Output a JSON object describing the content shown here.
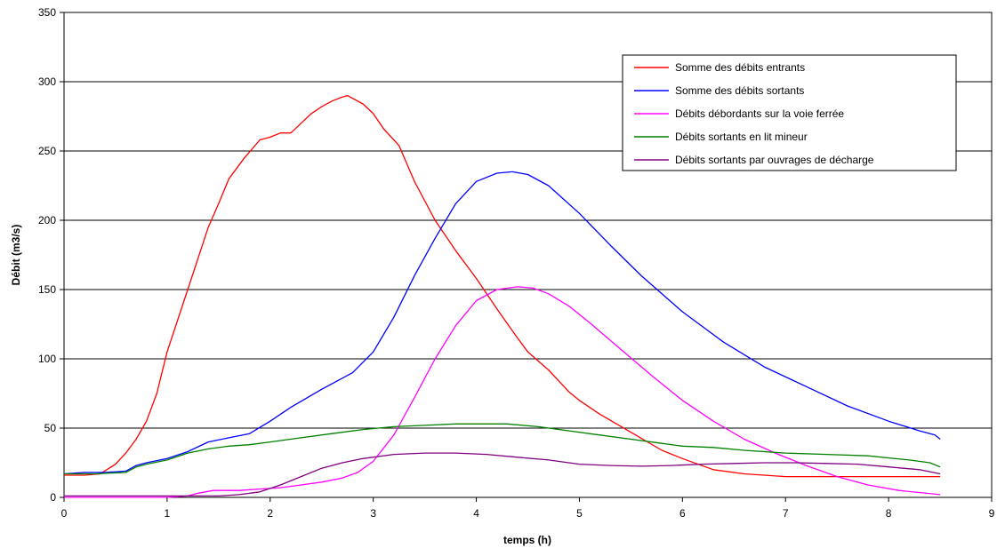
{
  "chart_data": {
    "type": "line",
    "title": "",
    "xlabel": "temps (h)",
    "ylabel": "Débit (m3/s)",
    "xlim": [
      0,
      9
    ],
    "ylim": [
      0,
      350
    ],
    "x_ticks": [
      0,
      1,
      2,
      3,
      4,
      5,
      6,
      7,
      8,
      9
    ],
    "y_ticks": [
      0,
      50,
      100,
      150,
      200,
      250,
      300,
      350
    ],
    "grid": "horizontal",
    "legend_position": "top-right",
    "series": [
      {
        "name": "Somme des débits entrants",
        "color": "#ff0000",
        "points": [
          [
            0,
            16
          ],
          [
            0.2,
            16
          ],
          [
            0.35,
            17
          ],
          [
            0.5,
            24
          ],
          [
            0.6,
            32
          ],
          [
            0.7,
            42
          ],
          [
            0.8,
            55
          ],
          [
            0.9,
            75
          ],
          [
            1.0,
            105
          ],
          [
            1.2,
            150
          ],
          [
            1.4,
            195
          ],
          [
            1.5,
            212
          ],
          [
            1.6,
            230
          ],
          [
            1.75,
            245
          ],
          [
            1.9,
            258
          ],
          [
            2.0,
            260
          ],
          [
            2.1,
            263
          ],
          [
            2.2,
            263
          ],
          [
            2.3,
            270
          ],
          [
            2.4,
            277
          ],
          [
            2.5,
            282
          ],
          [
            2.6,
            286
          ],
          [
            2.7,
            289
          ],
          [
            2.75,
            290
          ],
          [
            2.9,
            284
          ],
          [
            3.0,
            277
          ],
          [
            3.1,
            266
          ],
          [
            3.25,
            254
          ],
          [
            3.4,
            228
          ],
          [
            3.6,
            200
          ],
          [
            3.8,
            178
          ],
          [
            4.0,
            158
          ],
          [
            4.2,
            136
          ],
          [
            4.4,
            115
          ],
          [
            4.5,
            105
          ],
          [
            4.7,
            92
          ],
          [
            4.9,
            76
          ],
          [
            5.0,
            70
          ],
          [
            5.2,
            60
          ],
          [
            5.5,
            47
          ],
          [
            5.8,
            34
          ],
          [
            6.0,
            28
          ],
          [
            6.3,
            20
          ],
          [
            6.6,
            17
          ],
          [
            7.0,
            15
          ],
          [
            7.5,
            15
          ],
          [
            8.0,
            15
          ],
          [
            8.5,
            15
          ]
        ]
      },
      {
        "name": "Somme des débits sortants",
        "color": "#0000ff",
        "points": [
          [
            0,
            17
          ],
          [
            0.2,
            18
          ],
          [
            0.4,
            18
          ],
          [
            0.6,
            19
          ],
          [
            0.7,
            23
          ],
          [
            0.8,
            25
          ],
          [
            1.0,
            28
          ],
          [
            1.2,
            33
          ],
          [
            1.4,
            40
          ],
          [
            1.6,
            43
          ],
          [
            1.8,
            46
          ],
          [
            2.0,
            55
          ],
          [
            2.2,
            65
          ],
          [
            2.5,
            78
          ],
          [
            2.8,
            90
          ],
          [
            3.0,
            105
          ],
          [
            3.2,
            130
          ],
          [
            3.4,
            160
          ],
          [
            3.6,
            187
          ],
          [
            3.8,
            212
          ],
          [
            4.0,
            228
          ],
          [
            4.2,
            234
          ],
          [
            4.35,
            235
          ],
          [
            4.5,
            233
          ],
          [
            4.7,
            225
          ],
          [
            5.0,
            205
          ],
          [
            5.3,
            182
          ],
          [
            5.6,
            160
          ],
          [
            6.0,
            134
          ],
          [
            6.4,
            112
          ],
          [
            6.8,
            94
          ],
          [
            7.2,
            80
          ],
          [
            7.6,
            66
          ],
          [
            8.0,
            55
          ],
          [
            8.3,
            48
          ],
          [
            8.45,
            45
          ],
          [
            8.5,
            42
          ]
        ]
      },
      {
        "name": "Débits débordants sur la voie ferrée",
        "color": "#ff00ff",
        "points": [
          [
            0,
            0
          ],
          [
            0.5,
            0
          ],
          [
            1.0,
            0
          ],
          [
            1.2,
            1
          ],
          [
            1.3,
            3
          ],
          [
            1.45,
            5
          ],
          [
            1.7,
            5
          ],
          [
            1.9,
            6
          ],
          [
            2.1,
            7
          ],
          [
            2.3,
            9
          ],
          [
            2.5,
            11
          ],
          [
            2.7,
            14
          ],
          [
            2.85,
            18
          ],
          [
            3.0,
            26
          ],
          [
            3.2,
            45
          ],
          [
            3.4,
            72
          ],
          [
            3.6,
            100
          ],
          [
            3.8,
            124
          ],
          [
            4.0,
            142
          ],
          [
            4.2,
            150
          ],
          [
            4.4,
            152
          ],
          [
            4.55,
            151
          ],
          [
            4.7,
            147
          ],
          [
            4.9,
            138
          ],
          [
            5.1,
            126
          ],
          [
            5.4,
            107
          ],
          [
            5.7,
            88
          ],
          [
            6.0,
            70
          ],
          [
            6.3,
            55
          ],
          [
            6.6,
            42
          ],
          [
            6.9,
            32
          ],
          [
            7.2,
            23
          ],
          [
            7.5,
            15
          ],
          [
            7.8,
            9
          ],
          [
            8.1,
            5
          ],
          [
            8.5,
            2
          ]
        ]
      },
      {
        "name": "Débits sortants en lit mineur",
        "color": "#008000",
        "points": [
          [
            0,
            17
          ],
          [
            0.3,
            17
          ],
          [
            0.6,
            18
          ],
          [
            0.7,
            22
          ],
          [
            0.8,
            24
          ],
          [
            1.0,
            27
          ],
          [
            1.2,
            32
          ],
          [
            1.4,
            35
          ],
          [
            1.6,
            37
          ],
          [
            1.8,
            38
          ],
          [
            2.0,
            40
          ],
          [
            2.3,
            43
          ],
          [
            2.6,
            46
          ],
          [
            2.9,
            49
          ],
          [
            3.2,
            51
          ],
          [
            3.5,
            52
          ],
          [
            3.8,
            53
          ],
          [
            4.0,
            53
          ],
          [
            4.3,
            53
          ],
          [
            4.6,
            51
          ],
          [
            4.9,
            48
          ],
          [
            5.2,
            45
          ],
          [
            5.5,
            42
          ],
          [
            5.8,
            39
          ],
          [
            6.0,
            37
          ],
          [
            6.3,
            36
          ],
          [
            6.6,
            34
          ],
          [
            7.0,
            32
          ],
          [
            7.4,
            31
          ],
          [
            7.8,
            30
          ],
          [
            8.2,
            27
          ],
          [
            8.4,
            25
          ],
          [
            8.5,
            22
          ]
        ]
      },
      {
        "name": "Débits sortants par ouvrages de décharge",
        "color": "#800080",
        "points": [
          [
            0,
            1
          ],
          [
            0.5,
            1
          ],
          [
            1.0,
            1
          ],
          [
            1.5,
            1
          ],
          [
            1.7,
            2
          ],
          [
            1.9,
            4
          ],
          [
            2.1,
            9
          ],
          [
            2.3,
            15
          ],
          [
            2.5,
            21
          ],
          [
            2.7,
            25
          ],
          [
            2.9,
            28
          ],
          [
            3.2,
            31
          ],
          [
            3.5,
            32
          ],
          [
            3.8,
            32
          ],
          [
            4.1,
            31
          ],
          [
            4.4,
            29
          ],
          [
            4.7,
            27
          ],
          [
            5.0,
            24
          ],
          [
            5.3,
            23
          ],
          [
            5.6,
            22.5
          ],
          [
            5.9,
            23
          ],
          [
            6.2,
            24
          ],
          [
            6.5,
            24.5
          ],
          [
            6.8,
            25
          ],
          [
            7.1,
            25
          ],
          [
            7.4,
            24.5
          ],
          [
            7.7,
            24
          ],
          [
            8.0,
            22
          ],
          [
            8.3,
            20
          ],
          [
            8.5,
            17
          ]
        ]
      }
    ]
  }
}
